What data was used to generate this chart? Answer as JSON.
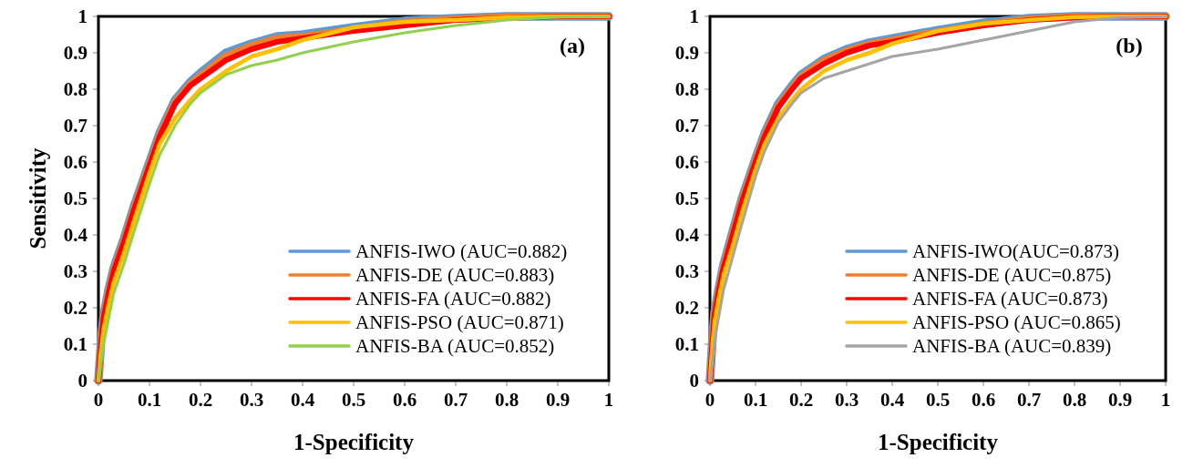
{
  "chart_data": [
    {
      "type": "line",
      "ylabel": "Sensitivity",
      "xlabel": "1-Specificity",
      "annotations": [
        "(a)"
      ],
      "xlim": [
        0,
        1
      ],
      "ylim": [
        0,
        1
      ],
      "xticks": [
        0,
        0.1,
        0.2,
        0.3,
        0.4,
        0.5,
        0.6,
        0.7,
        0.8,
        0.9,
        1
      ],
      "yticks": [
        0,
        0.1,
        0.2,
        0.3,
        0.4,
        0.5,
        0.6,
        0.7,
        0.8,
        0.9,
        1
      ],
      "grid": false,
      "legend": "bottom right",
      "marker": "none",
      "line_style": "solid",
      "x": [
        0,
        0.005,
        0.01,
        0.02,
        0.03,
        0.05,
        0.07,
        0.1,
        0.12,
        0.15,
        0.18,
        0.2,
        0.25,
        0.3,
        0.35,
        0.4,
        0.5,
        0.6,
        0.7,
        0.8,
        0.9,
        1
      ],
      "series": [
        {
          "name": "ANFIS-IWO (AUC=0.882)",
          "color": "#5b9bd5",
          "values": [
            0,
            0.105,
            0.178,
            0.25,
            0.31,
            0.39,
            0.48,
            0.6,
            0.68,
            0.77,
            0.82,
            0.845,
            0.9,
            0.925,
            0.945,
            0.95,
            0.97,
            0.988,
            0.995,
            1,
            1,
            1
          ]
        },
        {
          "name": "ANFIS-DE (AUC=0.883)",
          "color": "#ed7d31",
          "values": [
            0,
            0.102,
            0.174,
            0.245,
            0.305,
            0.385,
            0.475,
            0.595,
            0.675,
            0.765,
            0.815,
            0.838,
            0.892,
            0.92,
            0.94,
            0.945,
            0.965,
            0.984,
            0.993,
            0.999,
            1,
            1
          ]
        },
        {
          "name": "ANFIS-FA (AUC=0.882)",
          "color": "#ff0000",
          "values": [
            0,
            0.1,
            0.17,
            0.24,
            0.3,
            0.38,
            0.47,
            0.59,
            0.67,
            0.76,
            0.81,
            0.83,
            0.88,
            0.91,
            0.93,
            0.94,
            0.96,
            0.975,
            0.99,
            0.995,
            1,
            1
          ]
        },
        {
          "name": "ANFIS-PSO (AUC=0.871)",
          "color": "#ffc000",
          "values": [
            0,
            0.08,
            0.14,
            0.21,
            0.27,
            0.35,
            0.44,
            0.57,
            0.65,
            0.72,
            0.77,
            0.8,
            0.85,
            0.89,
            0.91,
            0.935,
            0.97,
            0.985,
            0.99,
            0.997,
            1,
            1
          ]
        },
        {
          "name": "ANFIS-BA (AUC=0.852)",
          "color": "#92d050",
          "values": [
            0,
            0.05,
            0.1,
            0.17,
            0.24,
            0.32,
            0.41,
            0.54,
            0.62,
            0.7,
            0.76,
            0.79,
            0.84,
            0.865,
            0.88,
            0.9,
            0.93,
            0.955,
            0.975,
            0.99,
            0.998,
            1
          ]
        }
      ]
    },
    {
      "type": "line",
      "xlabel": "1-Specificity",
      "annotations": [
        "(b)"
      ],
      "xlim": [
        0,
        1
      ],
      "ylim": [
        0,
        1
      ],
      "xticks": [
        0,
        0.1,
        0.2,
        0.3,
        0.4,
        0.5,
        0.6,
        0.7,
        0.8,
        0.9,
        1
      ],
      "yticks": [
        0,
        0.1,
        0.2,
        0.3,
        0.4,
        0.5,
        0.6,
        0.7,
        0.8,
        0.9,
        1
      ],
      "grid": false,
      "legend": "bottom right",
      "marker": "none",
      "line_style": "solid",
      "x": [
        0,
        0.005,
        0.01,
        0.02,
        0.03,
        0.05,
        0.07,
        0.1,
        0.12,
        0.15,
        0.18,
        0.2,
        0.25,
        0.3,
        0.35,
        0.4,
        0.5,
        0.6,
        0.7,
        0.8,
        0.9,
        1
      ],
      "series": [
        {
          "name": "ANFIS-IWO(AUC=0.873)",
          "color": "#5b9bd5",
          "values": [
            0,
            0.106,
            0.188,
            0.258,
            0.32,
            0.41,
            0.5,
            0.61,
            0.68,
            0.76,
            0.81,
            0.84,
            0.883,
            0.91,
            0.928,
            0.94,
            0.962,
            0.982,
            0.995,
            1,
            1,
            1
          ]
        },
        {
          "name": "ANFIS-DE (AUC=0.875)",
          "color": "#ed7d31",
          "values": [
            0,
            0.103,
            0.184,
            0.254,
            0.315,
            0.405,
            0.495,
            0.605,
            0.675,
            0.755,
            0.805,
            0.835,
            0.879,
            0.906,
            0.924,
            0.935,
            0.958,
            0.978,
            0.993,
            0.999,
            1,
            1
          ]
        },
        {
          "name": "ANFIS-FA (AUC=0.873)",
          "color": "#ff0000",
          "values": [
            0,
            0.1,
            0.18,
            0.25,
            0.31,
            0.4,
            0.49,
            0.6,
            0.67,
            0.75,
            0.8,
            0.83,
            0.87,
            0.9,
            0.92,
            0.93,
            0.955,
            0.975,
            0.99,
            0.997,
            1,
            1
          ]
        },
        {
          "name": "ANFIS-PSO (AUC=0.865)",
          "color": "#ffc000",
          "values": [
            0,
            0.09,
            0.16,
            0.23,
            0.29,
            0.37,
            0.46,
            0.58,
            0.65,
            0.72,
            0.77,
            0.8,
            0.85,
            0.88,
            0.9,
            0.925,
            0.96,
            0.98,
            0.99,
            0.998,
            1,
            1
          ]
        },
        {
          "name": "ANFIS-BA (AUC=0.839)",
          "color": "#a5a5a5",
          "values": [
            0,
            0.05,
            0.11,
            0.18,
            0.25,
            0.34,
            0.43,
            0.56,
            0.63,
            0.71,
            0.76,
            0.79,
            0.83,
            0.85,
            0.87,
            0.89,
            0.91,
            0.935,
            0.96,
            0.985,
            0.997,
            1
          ]
        }
      ]
    }
  ]
}
